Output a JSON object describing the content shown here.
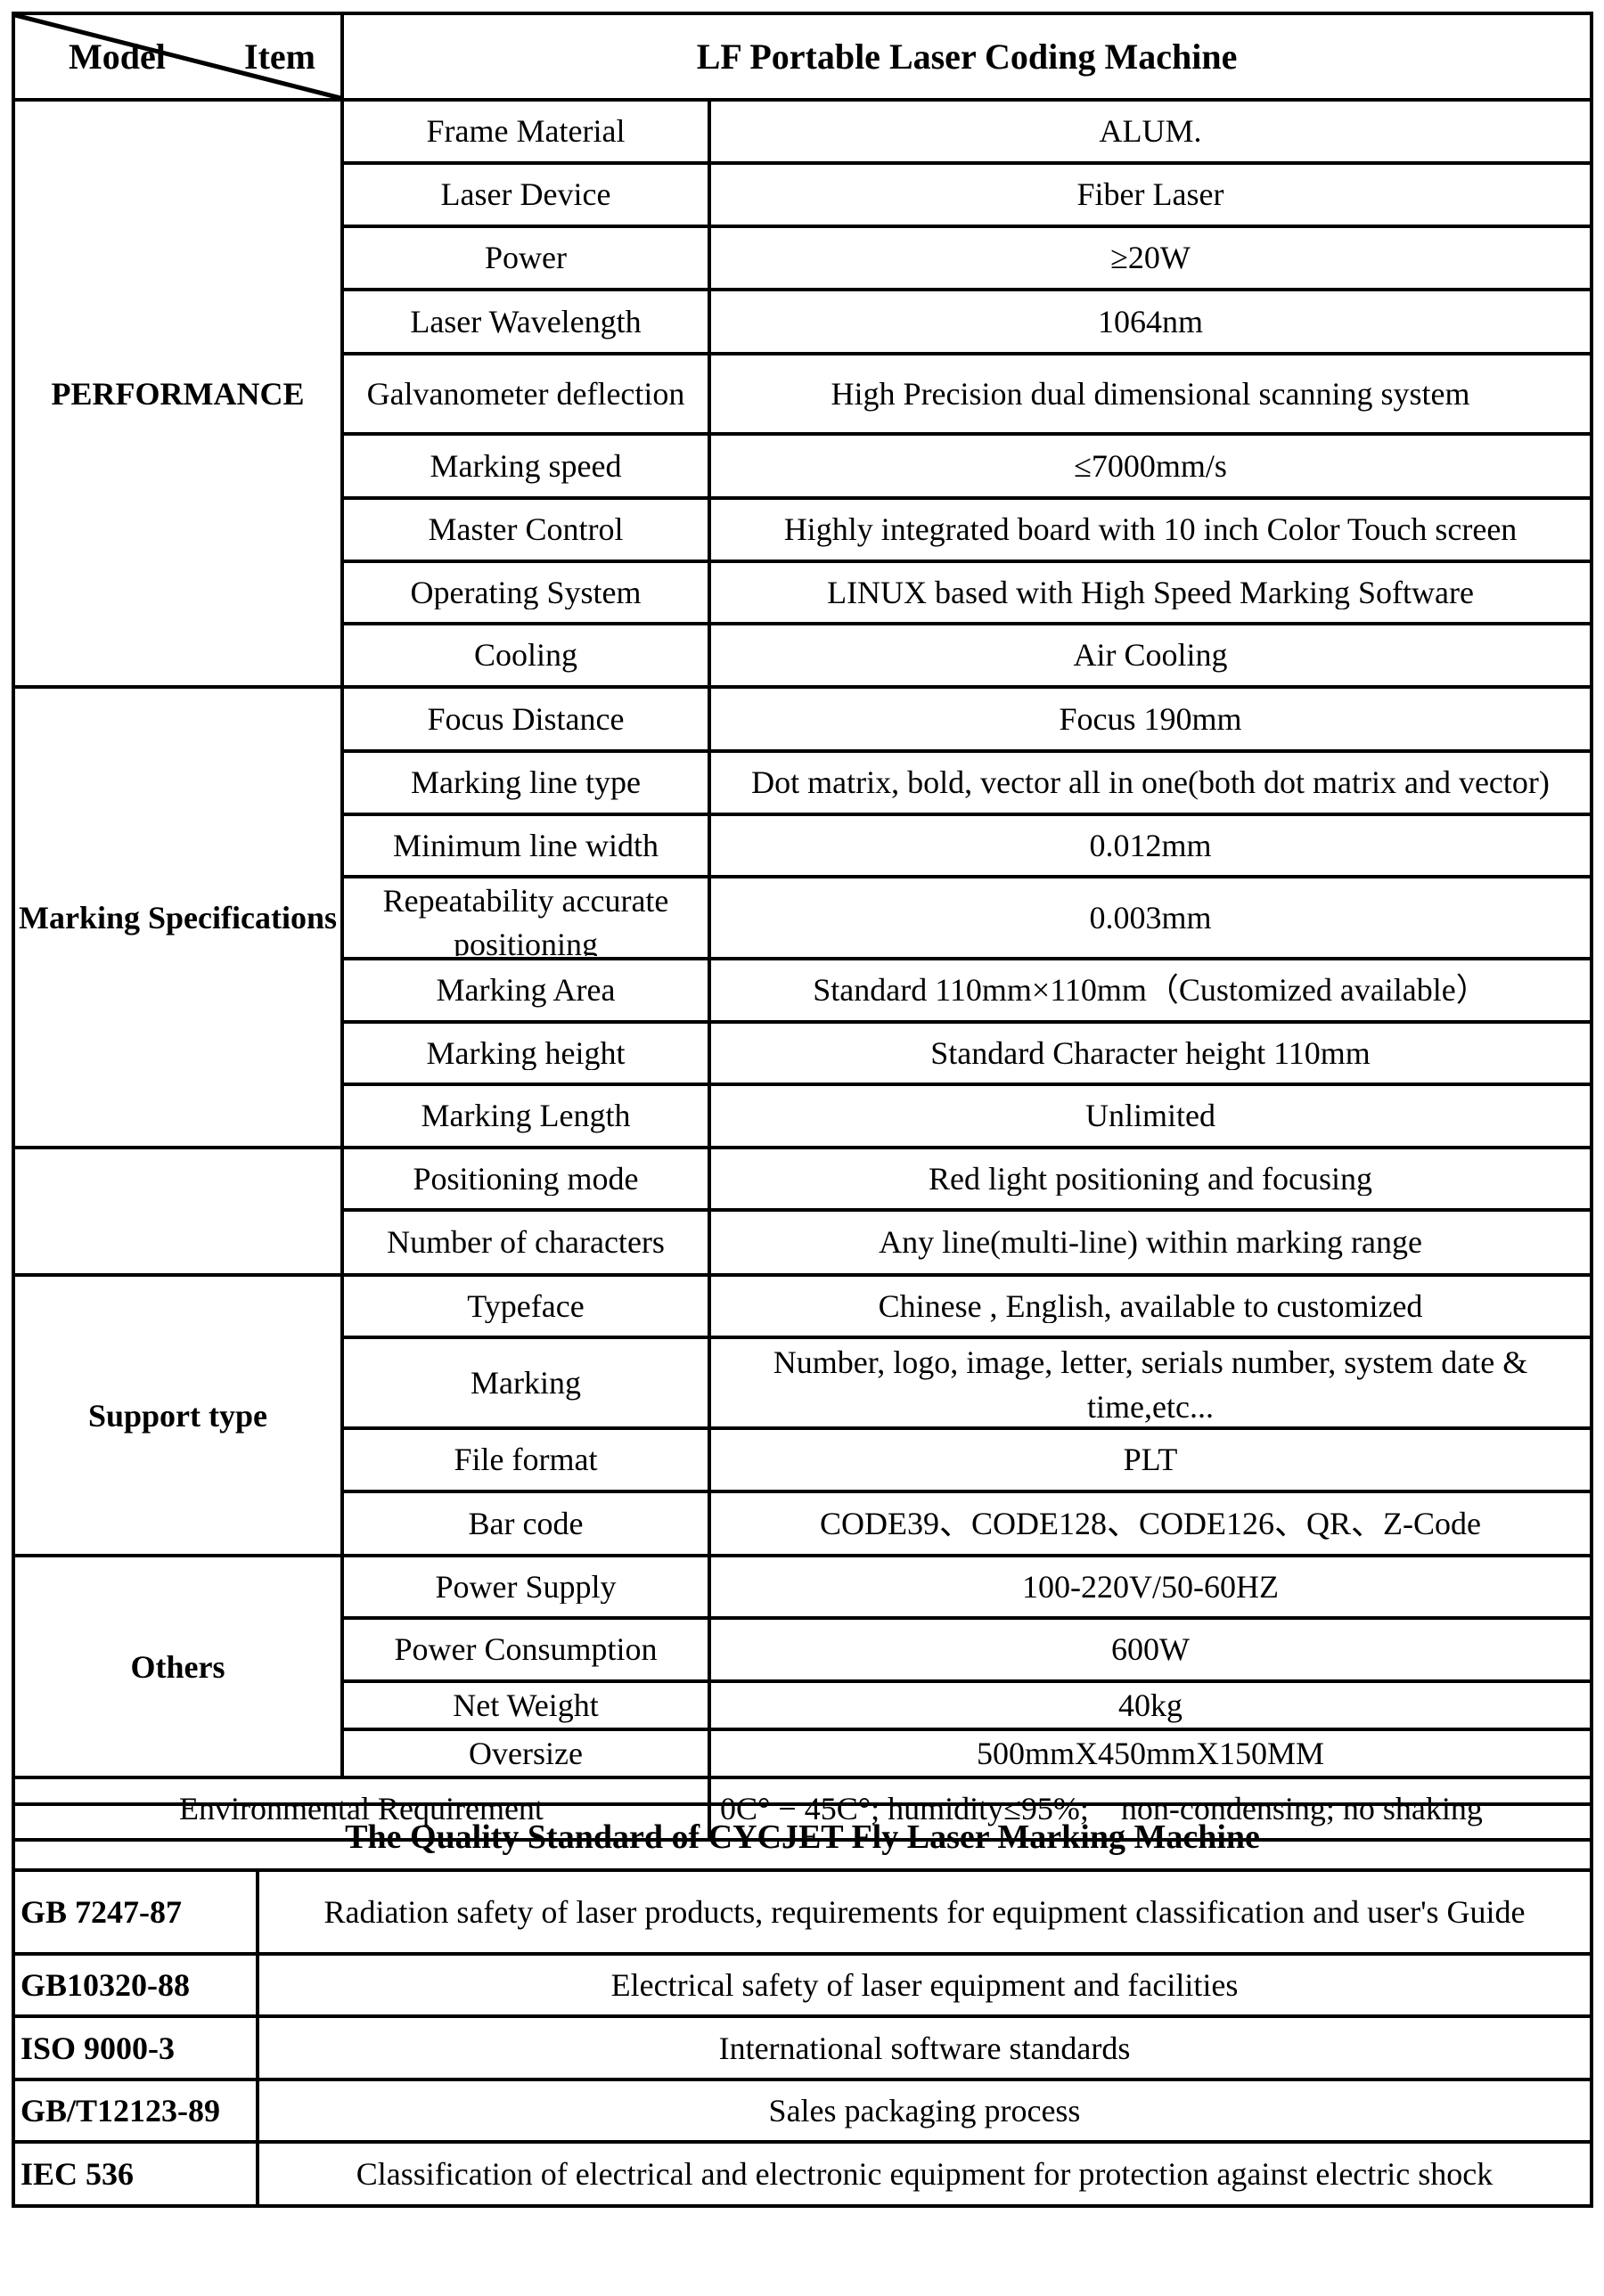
{
  "header": {
    "model_label": "Model",
    "item_label": "Item",
    "product": "LF Portable Laser Coding Machine"
  },
  "sections": [
    {
      "name": "PERFORMANCE",
      "rows": [
        {
          "item": "Frame Material",
          "value": "ALUM."
        },
        {
          "item": "Laser Device",
          "value": "Fiber Laser"
        },
        {
          "item": "Power",
          "value": "≥20W"
        },
        {
          "item": "Laser Wavelength",
          "value": "1064nm"
        },
        {
          "item": "Galvanometer deflection",
          "value": "High Precision dual dimensional scanning system"
        },
        {
          "item": "Marking speed",
          "value": "≤7000mm/s"
        },
        {
          "item": "Master Control",
          "value": "Highly integrated board with 10 inch Color Touch screen"
        },
        {
          "item": "Operating System",
          "value": "LINUX based with High Speed Marking Software"
        },
        {
          "item": "Cooling",
          "value": "Air Cooling"
        }
      ]
    },
    {
      "name": "Marking Specifications",
      "rows": [
        {
          "item": "Focus Distance",
          "value": "Focus 190mm"
        },
        {
          "item": "Marking line type",
          "value": "Dot matrix, bold, vector all in one(both dot matrix and vector)"
        },
        {
          "item": "Minimum line width",
          "value": "0.012mm"
        },
        {
          "item": "Repeatability accurate positioning",
          "value": "0.003mm"
        },
        {
          "item": "Marking Area",
          "value": "Standard 110mm×110mm（Customized available）"
        },
        {
          "item": "Marking height",
          "value": "Standard Character height 110mm"
        },
        {
          "item": "Marking Length",
          "value": "Unlimited"
        }
      ]
    },
    {
      "name": "",
      "rows": [
        {
          "item": "Positioning mode",
          "value": "Red light positioning and focusing"
        },
        {
          "item": "Number of characters",
          "value": "Any line(multi-line) within marking range"
        }
      ]
    },
    {
      "name": "Support type",
      "rows": [
        {
          "item": "Typeface",
          "value": "Chinese , English, available to customized"
        },
        {
          "item": "Marking",
          "value": "Number, logo, image, letter, serials number, system date & time,etc..."
        },
        {
          "item": "File format",
          "value": "PLT"
        },
        {
          "item": "Bar code",
          "value": "CODE39、CODE128、CODE126、QR、Z-Code"
        }
      ]
    },
    {
      "name": "Others",
      "rows": [
        {
          "item": "Power Supply",
          "value": "100-220V/50-60HZ"
        },
        {
          "item": "Power Consumption",
          "value": "600W"
        },
        {
          "item": "Net Weight",
          "value": "40kg"
        },
        {
          "item": "Oversize",
          "value": "500mmX450mmX150MM"
        }
      ]
    }
  ],
  "environment": {
    "label": "Environmental Requirement",
    "value": "0C° − 45C°; humidity≤95%;    non-condensing; no shaking"
  },
  "quality": {
    "title": "The Quality Standard of CYCJET Fly Laser Marking Machine",
    "standards": [
      {
        "code": "GB 7247-87",
        "desc": "Radiation safety of laser products, requirements for equipment classification and user's Guide"
      },
      {
        "code": "GB10320-88",
        "desc": "Electrical safety of laser equipment and facilities"
      },
      {
        "code": "ISO 9000-3",
        "desc": "International software standards"
      },
      {
        "code": "GB/T12123-89",
        "desc": "Sales packaging process"
      },
      {
        "code": "IEC 536",
        "desc": "Classification of electrical and electronic equipment for protection against electric shock"
      }
    ]
  }
}
